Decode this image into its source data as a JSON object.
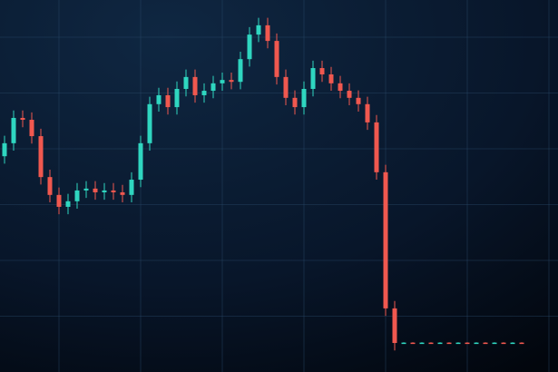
{
  "chart_data": {
    "type": "candlestick",
    "x": [
      0,
      1,
      2,
      3,
      4,
      5,
      6,
      7,
      8,
      9,
      10,
      11,
      12,
      13,
      14,
      15,
      16,
      17,
      18,
      19,
      20,
      21,
      22,
      23,
      24,
      25,
      26,
      27,
      28,
      29,
      30,
      31,
      32,
      33,
      34,
      35,
      36,
      37,
      38,
      39,
      40,
      41,
      42,
      43,
      44,
      45,
      46,
      47,
      48,
      49,
      50,
      51,
      52,
      53,
      54,
      55,
      56,
      57
    ],
    "open": [
      58,
      61.5,
      68.3,
      67.8,
      63.4,
      52.4,
      47.6,
      44.4,
      45.9,
      48.8,
      49.3,
      48.3,
      48.8,
      48.3,
      47.6,
      51.7,
      61.5,
      72.0,
      74.4,
      71.2,
      76.1,
      79.3,
      74.4,
      75.6,
      77.6,
      78.5,
      78.0,
      84.1,
      90.7,
      93.2,
      89.0,
      79.3,
      73.7,
      71.2,
      76.1,
      81.7,
      80.0,
      77.6,
      75.6,
      73.7,
      72.0,
      67.1,
      53.7,
      17.1,
      7.8,
      7.9,
      7.7,
      7.9,
      7.7,
      7.9,
      7.7,
      7.9,
      7.7,
      7.9,
      7.7,
      7.9,
      7.7,
      7.9
    ],
    "close": [
      61.5,
      68.3,
      67.8,
      63.4,
      52.4,
      47.6,
      44.4,
      45.9,
      48.8,
      49.3,
      48.3,
      48.8,
      48.3,
      47.6,
      51.7,
      61.5,
      72.0,
      74.4,
      71.2,
      76.1,
      79.3,
      74.4,
      75.6,
      77.6,
      78.5,
      78.0,
      84.1,
      90.7,
      93.2,
      89.0,
      79.3,
      73.7,
      71.2,
      76.1,
      81.7,
      80.0,
      77.6,
      75.6,
      73.7,
      72.0,
      67.1,
      53.7,
      17.1,
      7.8,
      7.9,
      7.7,
      7.9,
      7.7,
      7.9,
      7.7,
      7.9,
      7.7,
      7.9,
      7.7,
      7.9,
      7.7,
      7.9,
      7.7
    ],
    "high": [
      63.5,
      70.3,
      70.3,
      69.8,
      65.4,
      54.4,
      49.6,
      47.9,
      50.8,
      51.3,
      51.3,
      50.8,
      50.8,
      50.3,
      53.7,
      63.5,
      74,
      76.4,
      76.4,
      78.1,
      81.3,
      81.3,
      77.6,
      79.6,
      80.5,
      80.5,
      86.1,
      92.7,
      95.2,
      95.2,
      91,
      81.3,
      75.7,
      78.1,
      83.7,
      83.7,
      82,
      79.6,
      77.6,
      75.7,
      74,
      69.1,
      55.7,
      19.1,
      8.0,
      8.0,
      8.0,
      8.0,
      8.0,
      8.0,
      8.0,
      8.0,
      8.0,
      8.0,
      8.0,
      8.0,
      8.0,
      8.0
    ],
    "low": [
      56,
      59.5,
      65.8,
      61.4,
      50.4,
      45.6,
      42.4,
      42.4,
      43.9,
      46.8,
      46.3,
      46.3,
      46.3,
      45.6,
      45.6,
      49.7,
      59.5,
      70,
      69.2,
      69.2,
      74.1,
      72.4,
      72.4,
      73.6,
      75.6,
      76,
      76,
      82.1,
      88.7,
      87,
      77.3,
      71.7,
      69.2,
      69.2,
      74.1,
      78,
      75.6,
      73.6,
      71.7,
      70,
      65.1,
      51.7,
      15.1,
      5.8,
      7.6,
      7.6,
      7.6,
      7.6,
      7.6,
      7.6,
      7.6,
      7.6,
      7.6,
      7.6,
      7.6,
      7.6,
      7.6,
      7.6
    ],
    "up_color": "#2fd6c0",
    "down_color": "#f0584f",
    "xlim": [
      -0.5,
      61
    ],
    "ylim": [
      0,
      100
    ],
    "xticks": [
      6,
      15,
      24,
      33,
      42,
      51,
      60
    ],
    "yticks": [
      15,
      30,
      45,
      60,
      75,
      90
    ],
    "grid": true
  }
}
